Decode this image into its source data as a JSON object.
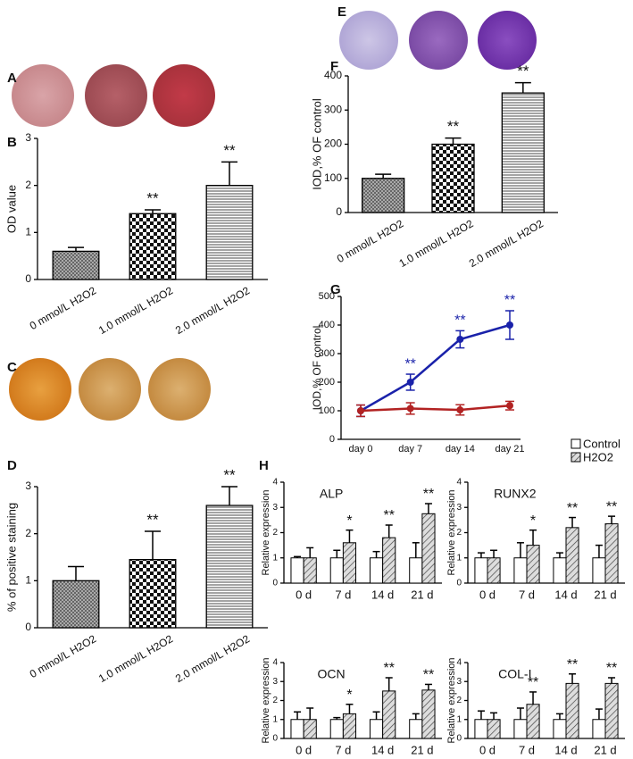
{
  "image_panels": [
    {
      "label": "A"
    },
    {
      "label": "C"
    },
    {
      "label": "E"
    }
  ],
  "chart_data": [
    {
      "type": "bar",
      "label": "B",
      "ylabel": "OD value",
      "categories": [
        "0 mmol/L H2O2",
        "1.0 mmol/L H2O2",
        "2.0 mmol/L H2O2"
      ],
      "values": [
        0.6,
        1.4,
        2.0
      ],
      "errors": [
        0.08,
        0.08,
        0.5
      ],
      "annotations": [
        null,
        "**",
        "**"
      ],
      "patterns": [
        "crosshatch",
        "checker",
        "hlines"
      ],
      "ylim": [
        0,
        3
      ],
      "yticks": [
        0,
        1,
        2,
        3
      ]
    },
    {
      "type": "bar",
      "label": "D",
      "ylabel": "% of positive staining",
      "categories": [
        "0 mmol/L H2O2",
        "1.0 mmol/L H2O2",
        "2.0 mmol/L H2O2"
      ],
      "values": [
        1.0,
        1.45,
        2.6
      ],
      "errors": [
        0.3,
        0.6,
        0.4
      ],
      "annotations": [
        null,
        "**",
        "**"
      ],
      "patterns": [
        "crosshatch",
        "checker",
        "hlines"
      ],
      "ylim": [
        0,
        3
      ],
      "yticks": [
        0,
        1,
        2,
        3
      ]
    },
    {
      "type": "bar",
      "label": "F",
      "ylabel": "IOD,% OF control",
      "categories": [
        "0 mmol/L H2O2",
        "1.0 mmol/L H2O2",
        "2.0 mmol/L H2O2"
      ],
      "values": [
        100,
        200,
        350
      ],
      "errors": [
        12,
        18,
        30
      ],
      "annotations": [
        null,
        "**",
        "**"
      ],
      "patterns": [
        "crosshatch",
        "checker",
        "hlines"
      ],
      "ylim": [
        0,
        400
      ],
      "yticks": [
        0,
        100,
        200,
        300,
        400
      ]
    },
    {
      "type": "line",
      "label": "G",
      "ylabel": "IOD,% OF control",
      "categories": [
        "day 0",
        "day 7",
        "day 14",
        "day 21"
      ],
      "series": [
        {
          "color": "#1a22aa",
          "values": [
            100,
            200,
            350,
            400
          ],
          "errors": [
            20,
            28,
            30,
            50
          ],
          "annotations": [
            null,
            "**",
            "**",
            "**"
          ]
        },
        {
          "color": "#b22222",
          "values": [
            100,
            108,
            103,
            118
          ],
          "errors": [
            20,
            20,
            18,
            15
          ]
        }
      ],
      "ylim": [
        0,
        500
      ],
      "yticks": [
        0,
        100,
        200,
        300,
        400,
        500
      ]
    },
    {
      "type": "grouped-bar",
      "label": "H",
      "ylabel": "Relative expression",
      "categories": [
        "0 d",
        "7 d",
        "14 d",
        "21 d"
      ],
      "ylim": [
        0,
        4
      ],
      "yticks": [
        0,
        1,
        2,
        3,
        4
      ],
      "legend": [
        {
          "name": "Control",
          "color": "#ffffff"
        },
        {
          "name": "H2O2",
          "pattern": "hatch"
        }
      ],
      "charts": [
        {
          "title": "ALP",
          "annotations": [
            null,
            "*",
            "**",
            "**"
          ],
          "series": [
            {
              "values": [
                1,
                1,
                1,
                1
              ],
              "errors": [
                0.05,
                0.3,
                0.25,
                0.6
              ]
            },
            {
              "values": [
                1,
                1.6,
                1.8,
                2.75
              ],
              "errors": [
                0.4,
                0.5,
                0.5,
                0.4
              ]
            }
          ]
        },
        {
          "title": "RUNX2",
          "annotations": [
            null,
            "*",
            "**",
            "**"
          ],
          "series": [
            {
              "values": [
                1,
                1,
                1,
                1
              ],
              "errors": [
                0.2,
                0.6,
                0.2,
                0.5
              ]
            },
            {
              "values": [
                1,
                1.5,
                2.2,
                2.35
              ],
              "errors": [
                0.3,
                0.6,
                0.4,
                0.3
              ]
            }
          ]
        },
        {
          "title": "OCN",
          "annotations": [
            null,
            "*",
            "**",
            "**"
          ],
          "series": [
            {
              "values": [
                1,
                1,
                1,
                1
              ],
              "errors": [
                0.4,
                0.1,
                0.4,
                0.3
              ]
            },
            {
              "values": [
                1,
                1.3,
                2.5,
                2.55
              ],
              "errors": [
                0.6,
                0.5,
                0.7,
                0.3
              ]
            }
          ]
        },
        {
          "title": "COL-I",
          "annotations": [
            null,
            "**",
            "**",
            "**"
          ],
          "series": [
            {
              "values": [
                1,
                1,
                1,
                1
              ],
              "errors": [
                0.45,
                0.6,
                0.3,
                0.55
              ]
            },
            {
              "values": [
                1,
                1.8,
                2.9,
                2.9
              ],
              "errors": [
                0.35,
                0.65,
                0.5,
                0.3
              ]
            }
          ]
        }
      ]
    }
  ]
}
